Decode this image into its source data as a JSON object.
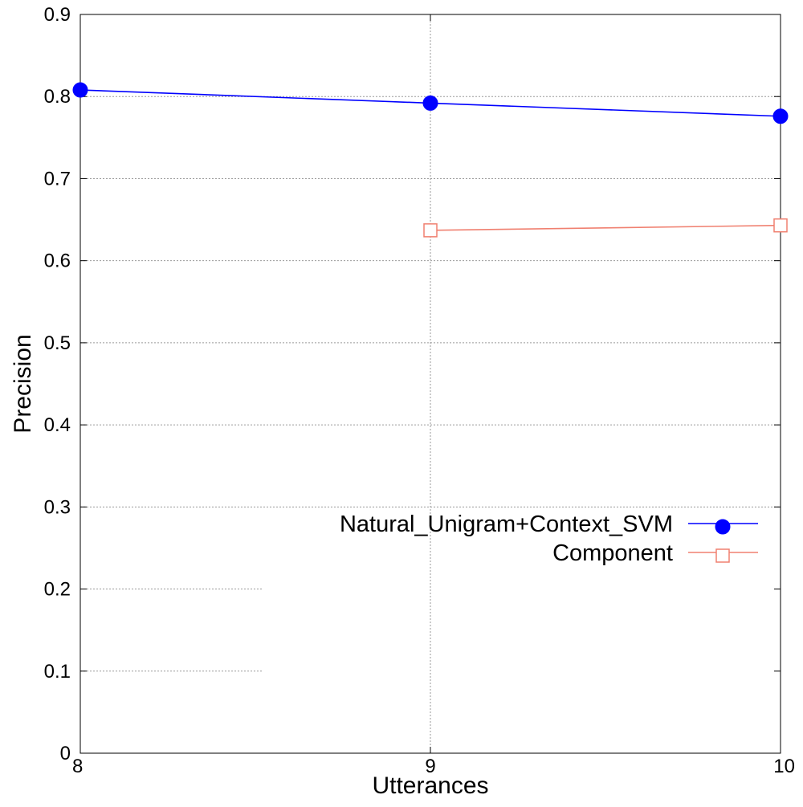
{
  "chart_data": {
    "type": "line",
    "title": "",
    "xlabel": "Utterances",
    "ylabel": "Precision",
    "xlim": [
      8,
      10
    ],
    "ylim": [
      0,
      0.9
    ],
    "x_ticks": [
      "8",
      "9",
      "10"
    ],
    "y_ticks": [
      "0",
      "0.1",
      "0.2",
      "0.3",
      "0.4",
      "0.5",
      "0.6",
      "0.7",
      "0.8",
      "0.9"
    ],
    "grid": true,
    "legend_position": "middle-right",
    "series": [
      {
        "name": "Natural_Unigram+Context_SVM",
        "color": "#0000ff",
        "marker": "filled-circle",
        "x": [
          8,
          9,
          10
        ],
        "y": [
          0.808,
          0.792,
          0.776
        ]
      },
      {
        "name": "Component",
        "color": "#f08070",
        "marker": "open-square",
        "x": [
          9,
          10
        ],
        "y": [
          0.637,
          0.643
        ]
      }
    ]
  }
}
